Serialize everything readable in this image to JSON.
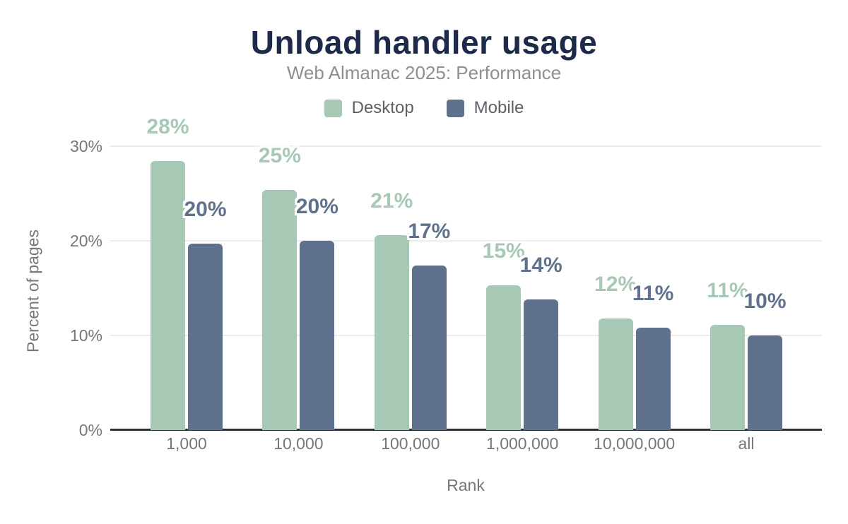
{
  "chart": {
    "title": "Unload handler usage",
    "subtitle": "Web Almanac 2025: Performance"
  },
  "chart_data": {
    "type": "bar",
    "title": "Unload handler usage",
    "subtitle": "Web Almanac 2025: Performance",
    "xlabel": "Rank",
    "ylabel": "Percent of pages",
    "categories": [
      "1,000",
      "10,000",
      "100,000",
      "1,000,000",
      "10,000,000",
      "all"
    ],
    "series": [
      {
        "name": "Desktop",
        "color": "#a7c8b5",
        "values": [
          28.4,
          25.4,
          20.6,
          15.3,
          11.8,
          11.1
        ],
        "labels": [
          "28%",
          "25%",
          "21%",
          "15%",
          "12%",
          "11%"
        ]
      },
      {
        "name": "Mobile",
        "color": "#60718d",
        "values": [
          19.7,
          20.0,
          17.4,
          13.8,
          10.8,
          10.0
        ],
        "labels": [
          "20%",
          "20%",
          "17%",
          "14%",
          "11%",
          "10%"
        ]
      }
    ],
    "yticks": [
      {
        "label": "0%",
        "value": 0
      },
      {
        "label": "10%",
        "value": 10
      },
      {
        "label": "20%",
        "value": 20
      },
      {
        "label": "30%",
        "value": 30
      }
    ],
    "ylim": [
      0,
      33
    ],
    "grid": true,
    "legend_position": "top",
    "baseline_color": "#2d2f33",
    "gridline_color": "#ececec",
    "title_color": "#1e2a49",
    "axis_text_color": "#74777c"
  }
}
